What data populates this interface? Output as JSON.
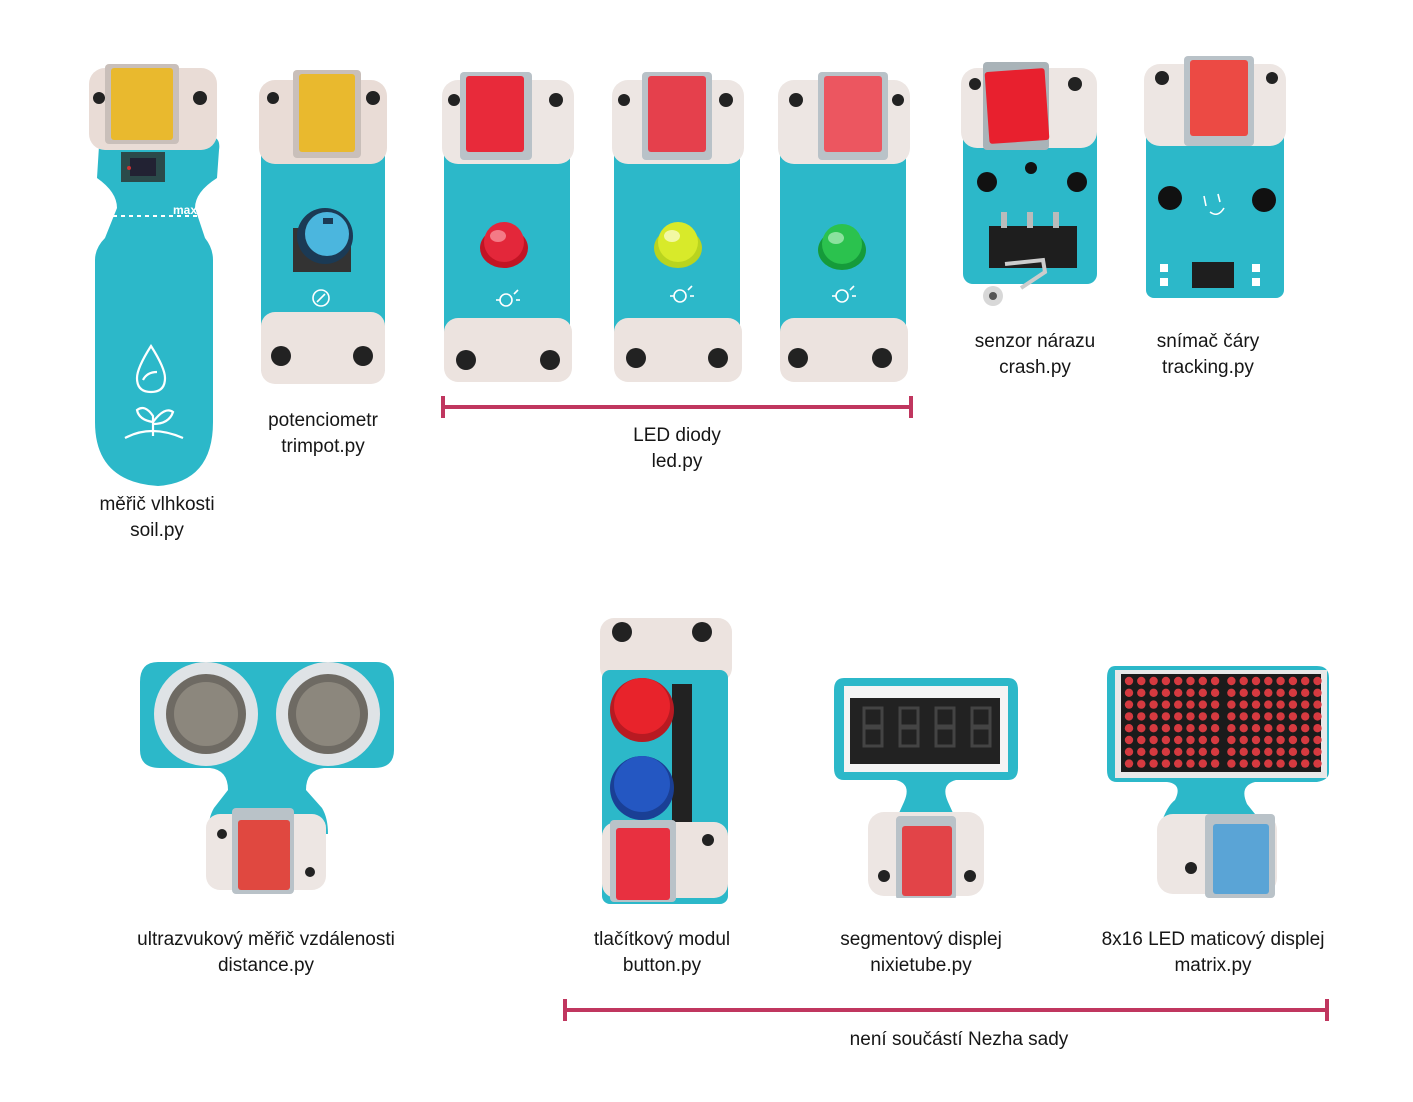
{
  "modules": [
    {
      "name": "měřič vlhkosti",
      "file": "soil.py"
    },
    {
      "name": "potenciometr",
      "file": "trimpot.py"
    },
    {
      "name": "senzor nárazu",
      "file": "crash.py"
    },
    {
      "name": "snímač čáry",
      "file": "tracking.py"
    },
    {
      "name": "ultrazvukový měřič vzdálenosti",
      "file": "distance.py"
    },
    {
      "name": "tlačítkový modul",
      "file": "button.py"
    },
    {
      "name": "segmentový displej",
      "file": "nixietube.py"
    },
    {
      "name": "8x16 LED maticový displej",
      "file": "matrix.py"
    }
  ],
  "led_group": {
    "name": "LED diody",
    "file": "led.py"
  },
  "not_in_kit": {
    "label": "není součástí Nezha sady"
  },
  "soil_board_text": "max",
  "colors": {
    "pcb": "#2cb8c9",
    "connector_yellow": "#e9b92e",
    "connector_red": "#e53a44",
    "connector_blue": "#5aa4d6",
    "bracket": "#c0365f"
  },
  "icons": [
    "water-drop-sprout-icon",
    "knob-icon",
    "bulb-icon",
    "face-icon"
  ]
}
